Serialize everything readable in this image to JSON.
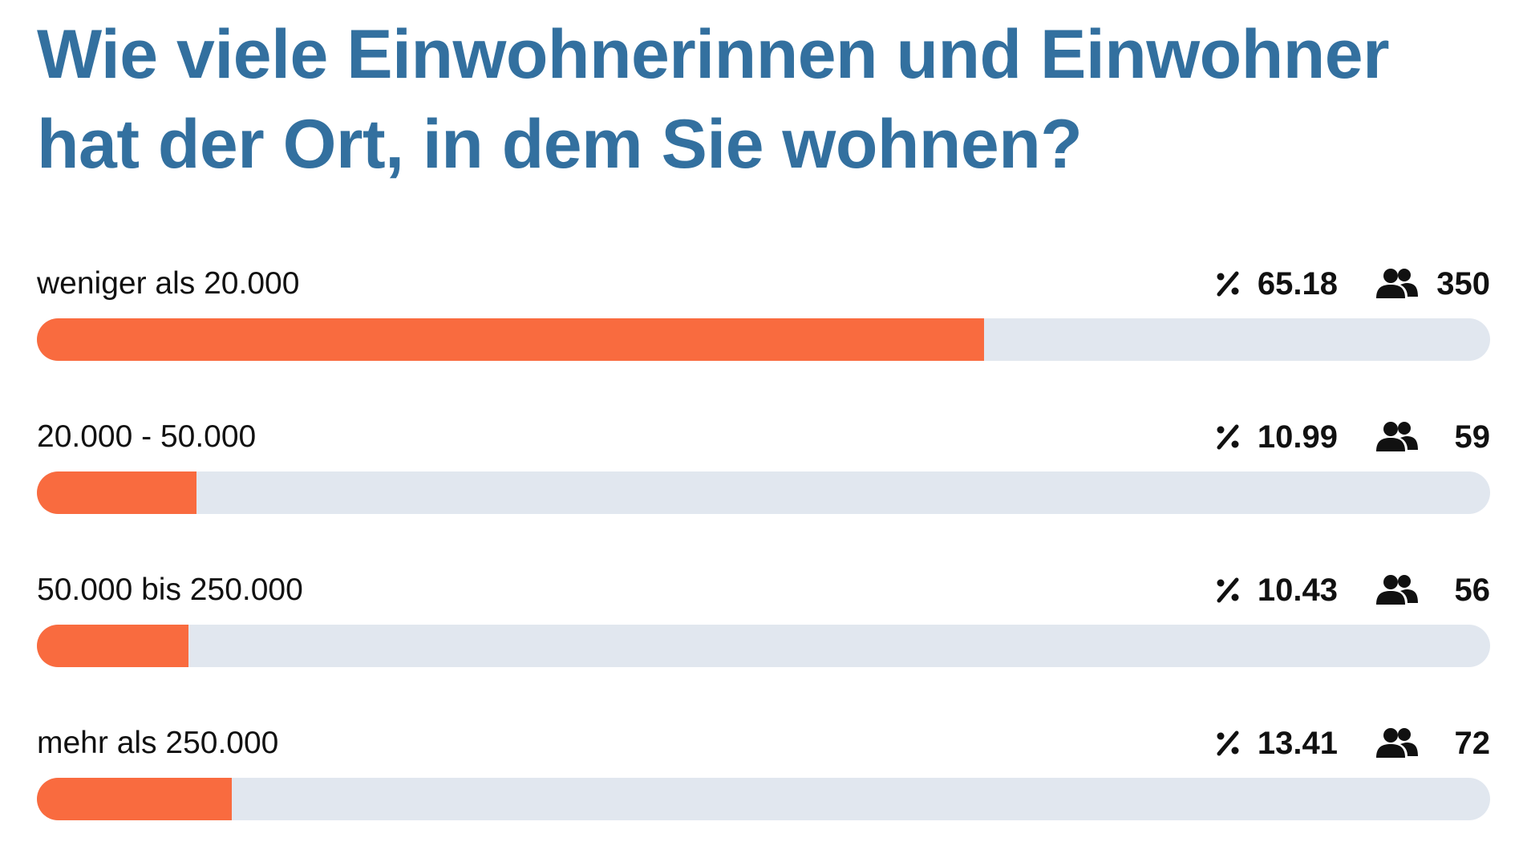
{
  "title": "Wie viele Einwohnerinnen und Einwohner hat der Ort, in dem Sie wohnen?",
  "options": [
    {
      "label": "weniger als 20.000",
      "percent": 65.18,
      "votes": 350
    },
    {
      "label": "20.000 - 50.000",
      "percent": 10.99,
      "votes": 59
    },
    {
      "label": "50.000 bis 250.000",
      "percent": 10.43,
      "votes": 56
    },
    {
      "label": "mehr als 250.000",
      "percent": 13.41,
      "votes": 72
    }
  ]
}
